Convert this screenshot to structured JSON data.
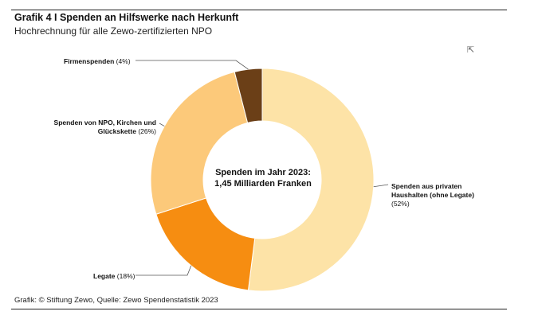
{
  "header": {
    "title": "Grafik 4 I Spenden an Hilfswerke nach Herkunft",
    "subtitle": "Hochrechnung für alle Zewo-zertifizierten NPO"
  },
  "footer": {
    "source": "Grafik: © Stiftung Zewo, Quelle: Zewo Spendenstatistik 2023"
  },
  "center_label": {
    "line1": "Spenden im Jahr 2023:",
    "line2": "1,45 Milliarden Franken"
  },
  "chart_data": {
    "type": "pie",
    "donut": true,
    "title": "Grafik 4 I Spenden an Hilfswerke nach Herkunft",
    "subtitle": "Hochrechnung für alle Zewo-zertifizierten NPO",
    "slices": [
      {
        "label": "Spenden aus privaten Haushalten (ohne Legate)",
        "value": 52,
        "pct_label": "(52%)",
        "color": "#FDE3A7"
      },
      {
        "label": "Legate",
        "value": 18,
        "pct_label": "(18%)",
        "color": "#F68D11"
      },
      {
        "label": "Spenden von NPO, Kirchen und Glückskette",
        "value": 26,
        "pct_label": "(26%)",
        "color": "#FCC97A"
      },
      {
        "label": "Firmenspenden",
        "value": 4,
        "pct_label": "(4%)",
        "color": "#6B3F17"
      }
    ]
  },
  "labels": {
    "private_line1": "Spenden aus privaten",
    "private_line2": "Haushalten (ohne Legate)",
    "legate": "Legate",
    "npo_line1": "Spenden von NPO, Kirchen und",
    "npo_line2": "Glückskette",
    "firmen": "Firmenspenden"
  },
  "icons": {
    "cursor": "mouse-pointer-icon"
  }
}
